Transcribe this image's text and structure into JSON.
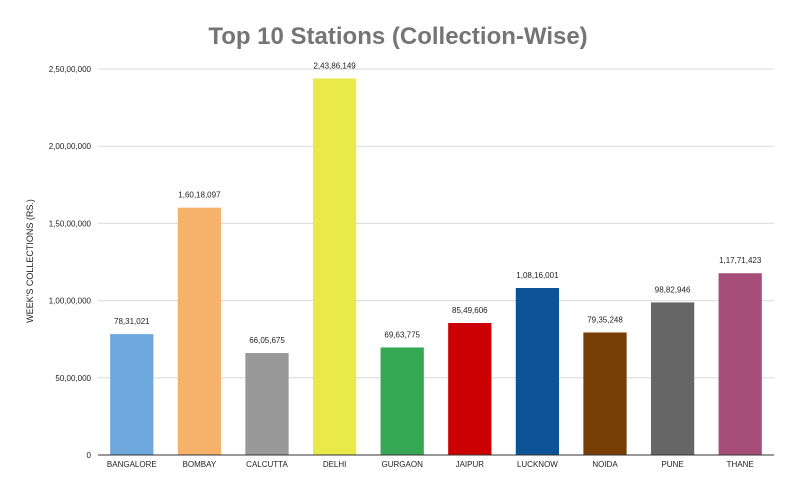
{
  "chart_data": {
    "type": "bar",
    "title": "Top 10 Stations (Collection-Wise)",
    "xlabel": "",
    "ylabel": "WEEK'S COLLECTIONS (RS.)",
    "ylim": [
      0,
      25000000
    ],
    "yticks": [
      {
        "value": 0,
        "label": "0"
      },
      {
        "value": 5000000,
        "label": "50,00,000"
      },
      {
        "value": 10000000,
        "label": "1,00,00,000"
      },
      {
        "value": 15000000,
        "label": "1,50,00,000"
      },
      {
        "value": 20000000,
        "label": "2,00,00,000"
      },
      {
        "value": 25000000,
        "label": "2,50,00,000"
      }
    ],
    "grid": true,
    "legend": "none",
    "categories": [
      "BANGALORE",
      "BOMBAY",
      "CALCUTTA",
      "DELHI",
      "GURGAON",
      "JAIPUR",
      "LUCKNOW",
      "NOIDA",
      "PUNE",
      "THANE"
    ],
    "values": [
      7831021,
      16018097,
      6605675,
      24386149,
      6963775,
      8549606,
      10816001,
      7935248,
      9882946,
      11771423
    ],
    "value_labels": [
      "78,31,021",
      "1,60,18,097",
      "66,05,675",
      "2,43,86,149",
      "69,63,775",
      "85,49,606",
      "1,08,16,001",
      "79,35,248",
      "98,82,946",
      "1,17,71,423"
    ],
    "colors": [
      "#6fa8dc",
      "#f6b26b",
      "#999999",
      "#e9e94a",
      "#34a853",
      "#cc0000",
      "#0b5394",
      "#783f04",
      "#666666",
      "#a64d79"
    ]
  }
}
